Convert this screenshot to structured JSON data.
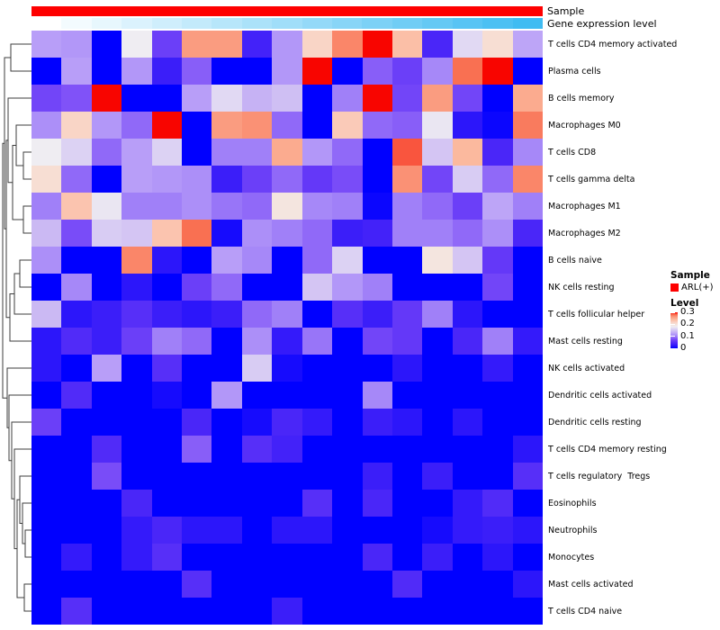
{
  "annotations": {
    "sample_label": "Sample",
    "gene_label": "Gene expression level",
    "sample_color": "#FE0000",
    "gene_gradient_start": "#FFFFFF",
    "gene_gradient_end": "#40BCF2"
  },
  "legend": {
    "sample_title": "Sample",
    "sample_items": [
      {
        "label": "ARL(+)",
        "color": "#FE0000"
      }
    ],
    "level_title": "Level",
    "level_ticks": [
      "0.3",
      "0.2",
      "0.1",
      "0"
    ]
  },
  "chart_data": {
    "type": "heatmap",
    "title": "",
    "n_cols": 17,
    "column_labels_shown": false,
    "value_range": [
      0,
      0.3
    ],
    "legend_position": "right",
    "column_annotations": {
      "Sample": "all columns ARL(+) (solid red)",
      "Gene expression level": "monotonic gradient low (white, left) to high (sky blue, right)"
    },
    "colormap_stops": [
      [
        0.0,
        "#0000FF"
      ],
      [
        0.02,
        "#2C16FA"
      ],
      [
        0.04,
        "#4A26F8"
      ],
      [
        0.06,
        "#6438F8"
      ],
      [
        0.08,
        "#8052F8"
      ],
      [
        0.1,
        "#A080F8"
      ],
      [
        0.12,
        "#B89EF8"
      ],
      [
        0.14,
        "#CBB9F3"
      ],
      [
        0.16,
        "#DCD2F3"
      ],
      [
        0.18,
        "#EFEDF2"
      ],
      [
        0.2,
        "#F6E2D9"
      ],
      [
        0.22,
        "#FAD0C0"
      ],
      [
        0.24,
        "#FBB99E"
      ],
      [
        0.26,
        "#FA9C80"
      ],
      [
        0.28,
        "#F97052"
      ],
      [
        0.3,
        "#F80500"
      ]
    ],
    "rows": [
      "T cells CD4 memory activated",
      "Plasma cells",
      "B cells memory",
      "Macrophages M0",
      "T cells CD8",
      "T cells gamma delta",
      "Macrophages M1",
      "Macrophages M2",
      "B cells naive",
      "NK cells resting",
      "T cells follicular helper",
      "Mast cells resting",
      "NK cells activated",
      "Dendritic cells activated",
      "Dendritic cells resting",
      "T cells CD4 memory resting",
      "T cells regulatory  Tregs",
      "Eosinophils",
      "Neutrophils",
      "Monocytes",
      "Mast cells activated",
      "T cells CD4 naive"
    ],
    "values": [
      [
        0.12,
        0.115,
        0,
        0.18,
        0.065,
        0.26,
        0.26,
        0.035,
        0.115,
        0.215,
        0.27,
        0.3,
        0.235,
        0.04,
        0.165,
        0.205,
        0.125
      ],
      [
        0,
        0.12,
        0,
        0.115,
        0.03,
        0.085,
        0,
        0,
        0.115,
        0.3,
        0,
        0.085,
        0.065,
        0.105,
        0.28,
        0.3,
        0
      ],
      [
        0.07,
        0.08,
        0.3,
        0,
        0,
        0.12,
        0.165,
        0.135,
        0.145,
        0,
        0.1,
        0.3,
        0.07,
        0.26,
        0.07,
        0,
        0.25
      ],
      [
        0.11,
        0.215,
        0.115,
        0.09,
        0.3,
        0,
        0.26,
        0.265,
        0.09,
        0,
        0.225,
        0.09,
        0.085,
        0.175,
        0.02,
        0.005,
        0.275
      ],
      [
        0.18,
        0.16,
        0.09,
        0.12,
        0.16,
        0,
        0.1,
        0.1,
        0.25,
        0.115,
        0.09,
        0,
        0.285,
        0.15,
        0.24,
        0.04,
        0.105
      ],
      [
        0.205,
        0.09,
        0,
        0.12,
        0.115,
        0.11,
        0.03,
        0.065,
        0.09,
        0.06,
        0.075,
        0,
        0.265,
        0.07,
        0.155,
        0.09,
        0.27
      ],
      [
        0.1,
        0.23,
        0.175,
        0.1,
        0.1,
        0.11,
        0.095,
        0.09,
        0.195,
        0.105,
        0.1,
        0.005,
        0.1,
        0.09,
        0.065,
        0.125,
        0.1
      ],
      [
        0.14,
        0.075,
        0.155,
        0.15,
        0.23,
        0.28,
        0.01,
        0.11,
        0.1,
        0.09,
        0.03,
        0.035,
        0.1,
        0.1,
        0.09,
        0.11,
        0.04
      ],
      [
        0.11,
        0,
        0,
        0.27,
        0.02,
        0,
        0.12,
        0.105,
        0,
        0.09,
        0.16,
        0,
        0,
        0.195,
        0.15,
        0.06,
        0
      ],
      [
        0,
        0.105,
        0,
        0.02,
        0,
        0.065,
        0.09,
        0,
        0,
        0.15,
        0.115,
        0.1,
        0,
        0,
        0,
        0.07,
        0
      ],
      [
        0.14,
        0.02,
        0.03,
        0.05,
        0.03,
        0.02,
        0.03,
        0.09,
        0.1,
        0,
        0.05,
        0.03,
        0.06,
        0.1,
        0.02,
        0,
        0
      ],
      [
        0.02,
        0.045,
        0.03,
        0.065,
        0.1,
        0.09,
        0,
        0.11,
        0.025,
        0.095,
        0,
        0.07,
        0.06,
        0,
        0.04,
        0.1,
        0.025
      ],
      [
        0.02,
        0,
        0.12,
        0,
        0.05,
        0,
        0,
        0.155,
        0.01,
        0,
        0,
        0,
        0.02,
        0,
        0,
        0.025,
        0
      ],
      [
        0,
        0.045,
        0,
        0,
        0.01,
        0,
        0.115,
        0,
        0,
        0,
        0,
        0.105,
        0,
        0,
        0,
        0,
        0
      ],
      [
        0.065,
        0,
        0,
        0,
        0,
        0.04,
        0,
        0.01,
        0.04,
        0.025,
        0,
        0.03,
        0.02,
        0,
        0.02,
        0,
        0
      ],
      [
        0,
        0,
        0.045,
        0,
        0,
        0.085,
        0,
        0.05,
        0.035,
        0,
        0,
        0,
        0,
        0,
        0,
        0,
        0.02
      ],
      [
        0,
        0,
        0.075,
        0,
        0,
        0,
        0,
        0,
        0,
        0,
        0,
        0.03,
        0,
        0.03,
        0,
        0,
        0.05
      ],
      [
        0,
        0,
        0,
        0.04,
        0,
        0,
        0,
        0,
        0,
        0.05,
        0,
        0.04,
        0,
        0,
        0.025,
        0.045,
        0
      ],
      [
        0,
        0,
        0,
        0.025,
        0.04,
        0.02,
        0.02,
        0,
        0.02,
        0.02,
        0,
        0,
        0,
        0.01,
        0.025,
        0.03,
        0.02
      ],
      [
        0,
        0.025,
        0,
        0.025,
        0.05,
        0,
        0,
        0,
        0,
        0,
        0,
        0.04,
        0,
        0.03,
        0,
        0.02,
        0
      ],
      [
        0,
        0,
        0,
        0,
        0,
        0.05,
        0,
        0,
        0,
        0,
        0,
        0,
        0.045,
        0,
        0,
        0,
        0.02
      ],
      [
        0,
        0.05,
        0,
        0,
        0,
        0,
        0,
        0,
        0.03,
        0,
        0,
        0,
        0,
        0,
        0,
        0,
        0
      ]
    ]
  }
}
